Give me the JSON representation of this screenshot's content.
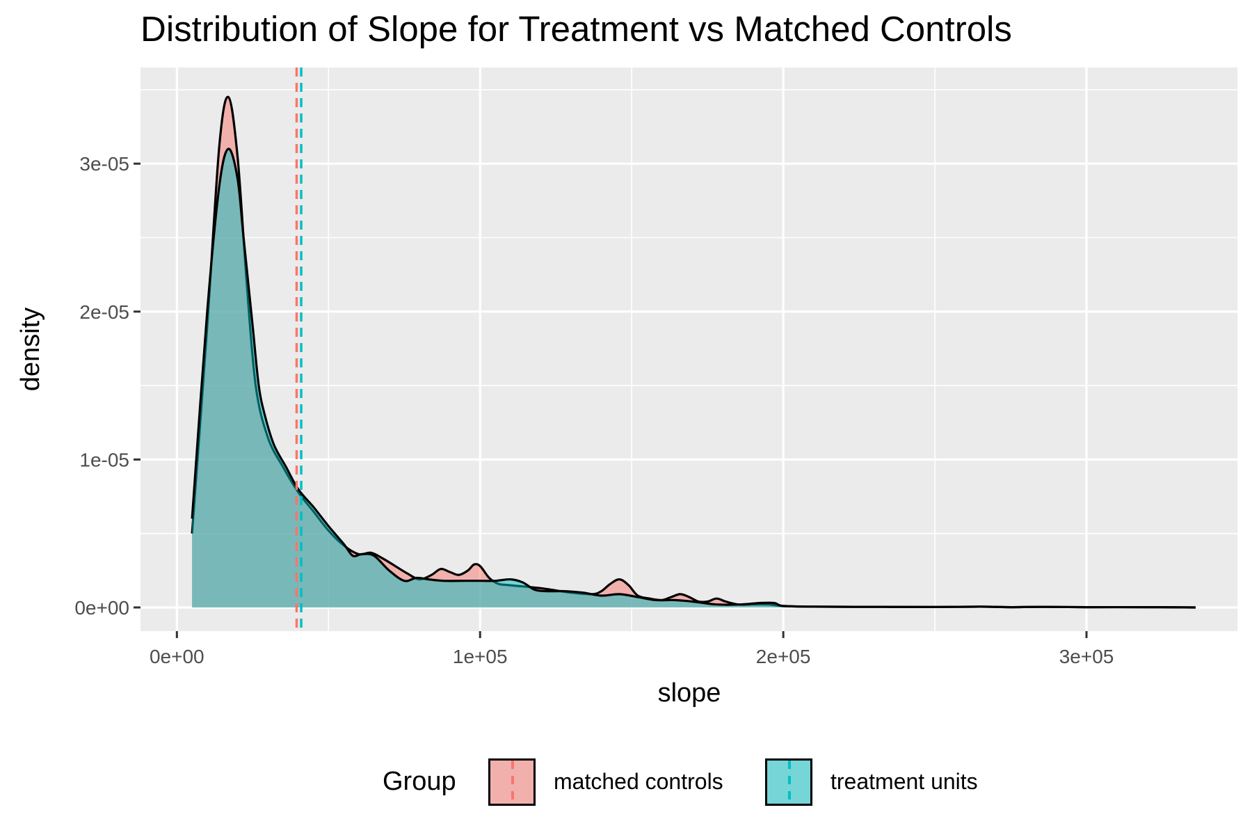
{
  "chart_data": {
    "type": "area",
    "title": "Distribution of Slope for Treatment vs Matched Controls",
    "xlabel": "slope",
    "ylabel": "density",
    "xlim": [
      -12000,
      350000
    ],
    "ylim": [
      -1.6e-06,
      3.65e-05
    ],
    "x_ticks": [
      0,
      100000,
      200000,
      300000
    ],
    "x_tick_labels": [
      "0e+00",
      "1e+05",
      "2e+05",
      "3e+05"
    ],
    "y_ticks": [
      0,
      1e-05,
      2e-05,
      3e-05
    ],
    "y_tick_labels": [
      "0e+00",
      "1e-05",
      "2e-05",
      "3e-05"
    ],
    "grid": true,
    "background": "#ebebeb",
    "legend": {
      "title": "Group",
      "position": "bottom",
      "entries": [
        "matched controls",
        "treatment units"
      ]
    },
    "series": [
      {
        "name": "matched controls",
        "color": "#f8766d",
        "fill_opacity": 0.5,
        "mean_line": 39500,
        "x": [
          5000,
          10000,
          14000,
          17000,
          20000,
          23000,
          26000,
          30000,
          35000,
          40000,
          45000,
          50000,
          55000,
          60000,
          64000,
          68000,
          72000,
          76000,
          80000,
          84000,
          87000,
          90000,
          93000,
          96000,
          98000,
          100000,
          103000,
          106000,
          110000,
          120000,
          130000,
          137000,
          140000,
          143000,
          146000,
          149000,
          152000,
          156000,
          160000,
          163000,
          166000,
          169000,
          172000,
          175000,
          178000,
          181000,
          185000,
          190000,
          195000,
          200000,
          210000,
          230000,
          250000,
          265000,
          275000,
          285000,
          300000,
          320000,
          336000
        ],
        "y": [
          5e-06,
          1.9e-05,
          3.12e-05,
          3.45e-05,
          3.05e-05,
          2.2e-05,
          1.5e-05,
          1.15e-05,
          9.5e-06,
          7.8e-06,
          6.5e-06,
          5.2e-06,
          4.2e-06,
          3.6e-06,
          3.7e-06,
          3.3e-06,
          2.8e-06,
          2.3e-06,
          1.9e-06,
          2.2e-06,
          2.6e-06,
          2.4e-06,
          2.2e-06,
          2.5e-06,
          2.9e-06,
          2.8e-06,
          2e-06,
          1.6e-06,
          1.5e-06,
          1.3e-06,
          1e-06,
          9e-07,
          1.1e-06,
          1.6e-06,
          1.9e-06,
          1.5e-06,
          8e-07,
          6e-07,
          5e-07,
          7e-07,
          9e-07,
          7e-07,
          4e-07,
          4e-07,
          6e-07,
          4e-07,
          2e-07,
          2e-07,
          2e-07,
          1e-07,
          5e-08,
          4e-08,
          3e-08,
          5e-08,
          2e-08,
          4e-08,
          2e-08,
          2e-08,
          0
        ]
      },
      {
        "name": "treatment units",
        "color": "#00bfc4",
        "fill_opacity": 0.5,
        "mean_line": 41000,
        "x": [
          5000,
          10000,
          14000,
          17000,
          20000,
          22000,
          25000,
          27000,
          29000,
          32000,
          36000,
          40000,
          45000,
          50000,
          55000,
          58000,
          61000,
          65000,
          70000,
          75000,
          79000,
          83000,
          88000,
          95000,
          100000,
          105000,
          110000,
          114000,
          118000,
          122000,
          128000,
          134000,
          140000,
          146000,
          152000,
          158000,
          164000,
          170000,
          178000,
          186000,
          192000,
          197000,
          200000,
          210000,
          230000,
          250000,
          265000,
          275000,
          285000,
          300000,
          320000,
          336000
        ],
        "y": [
          6e-06,
          2e-05,
          2.85e-05,
          3.1e-05,
          2.9e-05,
          2.5e-05,
          1.9e-05,
          1.5e-05,
          1.3e-05,
          1.1e-05,
          9.5e-06,
          8e-06,
          6.8e-06,
          5.5e-06,
          4.3e-06,
          3.5e-06,
          3.6e-06,
          3.5e-06,
          2.5e-06,
          1.8e-06,
          2e-06,
          1.9e-06,
          1.8e-06,
          1.8e-06,
          1.8e-06,
          1.8e-06,
          1.9e-06,
          1.7e-06,
          1.2e-06,
          1.1e-06,
          1.1e-06,
          1e-06,
          8e-07,
          9e-07,
          7e-07,
          5e-07,
          5e-07,
          4e-07,
          2e-07,
          2e-07,
          3e-07,
          3e-07,
          1e-07,
          5e-08,
          4e-08,
          3e-08,
          5e-08,
          2e-08,
          4e-08,
          2e-08,
          2e-08,
          0
        ]
      }
    ]
  }
}
